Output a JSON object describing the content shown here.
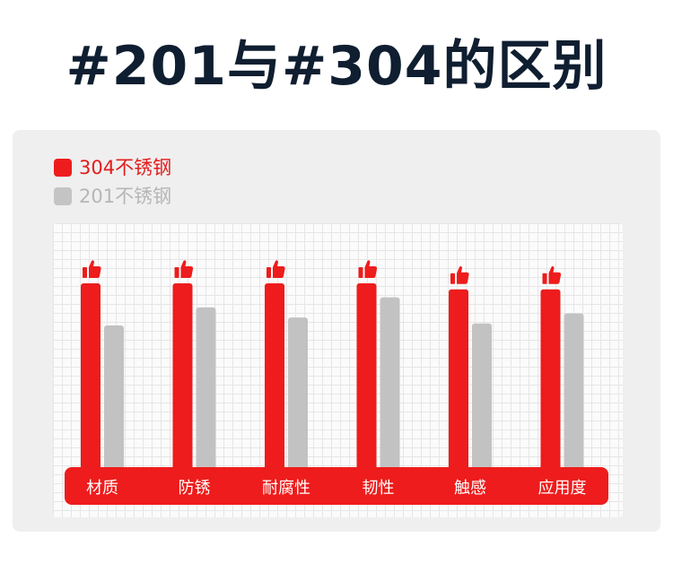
{
  "title": "#201与#304的区别",
  "chart_data": {
    "type": "bar",
    "categories": [
      "材质",
      "防锈",
      "耐腐性",
      "韧性",
      "触感",
      "应用度"
    ],
    "series": [
      {
        "name": "304不锈钢",
        "values": [
          100,
          100,
          100,
          100,
          97,
          97
        ],
        "color": "#ee1c1c"
      },
      {
        "name": "201不锈钢",
        "values": [
          79,
          88,
          83,
          93,
          80,
          85
        ],
        "color": "#c2c2c2"
      }
    ],
    "ylim": [
      0,
      100
    ],
    "legend": "top-left",
    "grid": true,
    "icon": "thumbs-up-icon",
    "band_color": "#ee1c1c"
  }
}
